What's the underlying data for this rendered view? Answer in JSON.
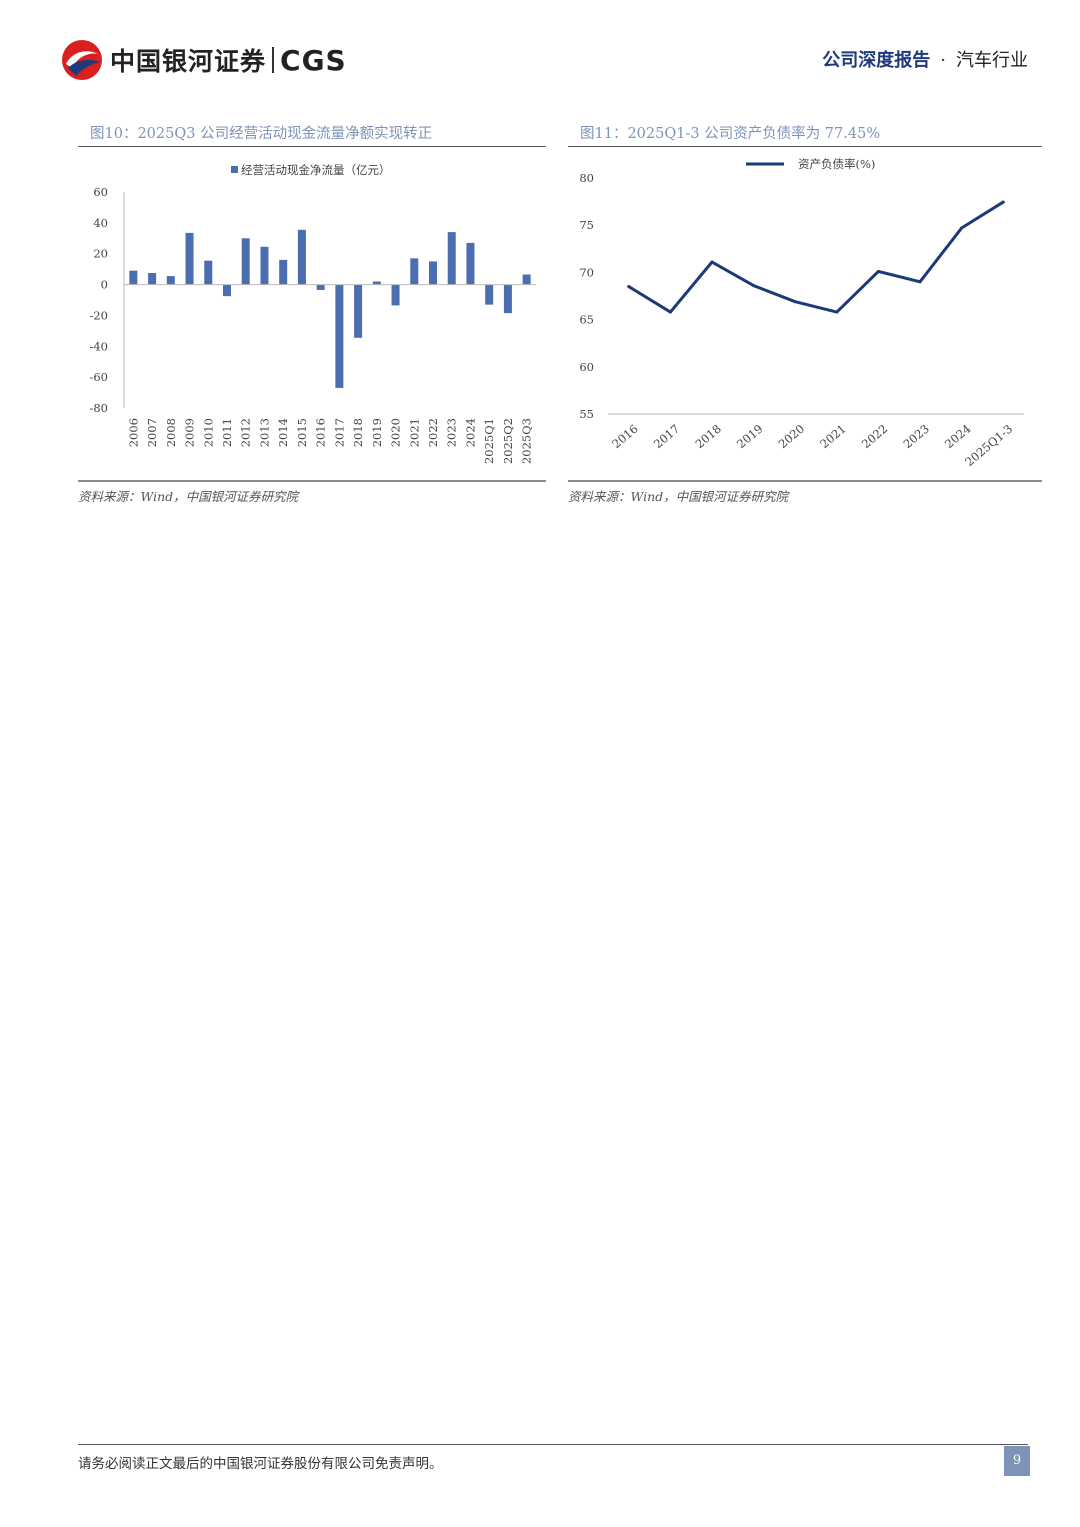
{
  "header": {
    "brand_cn": "中国银河证券",
    "brand_en": "CGS",
    "report_kind": "公司深度报告",
    "separator": "·",
    "industry": "汽车行业"
  },
  "colors": {
    "brand_red": "#d7201f",
    "brand_navy": "#1f3a7a",
    "bar_blue": "#4a6eb0",
    "line_navy": "#1b3a78",
    "accent_grey_blue": "#7f93b8"
  },
  "figures": [
    {
      "title": "图10：2025Q3 公司经营活动现金流量净额实现转正",
      "source": "资料来源：Wind，中国银河证券研究院"
    },
    {
      "title": "图11：2025Q1-3 公司资产负债率为 77.45%",
      "source": "资料来源：Wind，中国银河证券研究院"
    }
  ],
  "chart_data": [
    {
      "type": "bar",
      "legend": "经营活动现金净流量（亿元）",
      "legend_position": "top-center",
      "categories": [
        "2006",
        "2007",
        "2008",
        "2009",
        "2010",
        "2011",
        "2012",
        "2013",
        "2014",
        "2015",
        "2016",
        "2017",
        "2018",
        "2019",
        "2020",
        "2021",
        "2022",
        "2023",
        "2024",
        "2025Q1",
        "2025Q2",
        "2025Q3"
      ],
      "series": [
        {
          "name": "经营活动现金净流量（亿元）",
          "values": [
            9,
            7.5,
            5.5,
            33.5,
            15.5,
            -7.5,
            30,
            24.5,
            16,
            35.5,
            -3.5,
            -67,
            -34.5,
            2,
            -13.5,
            17,
            15,
            34,
            27,
            -13,
            -18.5,
            6.5
          ]
        }
      ],
      "ylim": [
        -80,
        60
      ],
      "yticks": [
        60,
        40,
        20,
        0,
        -20,
        -40,
        -60,
        -80
      ],
      "grid": false
    },
    {
      "type": "line",
      "legend": "资产负债率(%)",
      "legend_position": "top-center",
      "categories": [
        "2016",
        "2017",
        "2018",
        "2019",
        "2020",
        "2021",
        "2022",
        "2023",
        "2024",
        "2025Q1-3"
      ],
      "series": [
        {
          "name": "资产负债率(%)",
          "values": [
            68.5,
            65.8,
            71.1,
            68.6,
            66.9,
            65.8,
            70.1,
            69.0,
            74.7,
            77.45
          ]
        }
      ],
      "ylim": [
        55,
        80
      ],
      "yticks": [
        80,
        75,
        70,
        65,
        60,
        55
      ],
      "grid": false
    }
  ],
  "footer": {
    "disclaimer": "请务必阅读正文最后的中国银河证券股份有限公司免责声明。",
    "page_number": "9"
  }
}
